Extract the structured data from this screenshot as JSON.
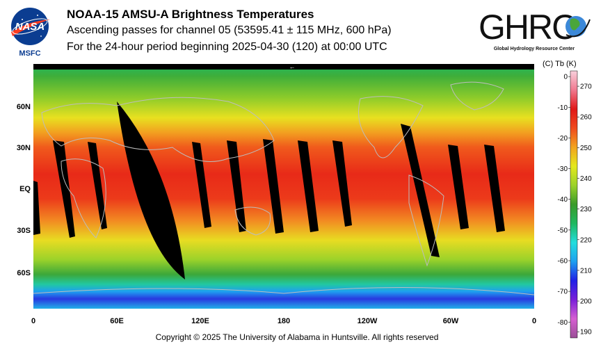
{
  "header": {
    "title": "NOAA-15 AMSU-A Brightness Temperatures",
    "subtitle": "Ascending passes for channel 05 (53595.41 ± 115 MHz, 600 hPa)",
    "period": "For the 24-hour period beginning 2025-04-30 (120) at 00:00 UTC"
  },
  "logos": {
    "nasa": {
      "wordmark": "NASA",
      "center": "MSFC"
    },
    "ghrc": {
      "wordmark": "GHRC",
      "tagline": "Global Hydrology Resource Center"
    }
  },
  "map": {
    "projection": "equirectangular",
    "direction_arrow": "←",
    "lat_labels": [
      {
        "text": "60N",
        "lat": 60
      },
      {
        "text": "30N",
        "lat": 30
      },
      {
        "text": "EQ",
        "lat": 0
      },
      {
        "text": "30S",
        "lat": -30
      },
      {
        "text": "60S",
        "lat": -60
      }
    ],
    "lon_labels": [
      {
        "text": "0",
        "lon": 0
      },
      {
        "text": "60E",
        "lon": 60
      },
      {
        "text": "120E",
        "lon": 120
      },
      {
        "text": "180",
        "lon": 180
      },
      {
        "text": "120W",
        "lon": 240
      },
      {
        "text": "60W",
        "lon": 300
      },
      {
        "text": "0",
        "lon": 360
      }
    ]
  },
  "colorbar": {
    "header": "(C)  Tb  (K)",
    "celsius_ticks": [
      "0",
      "-10",
      "-20",
      "-30",
      "-40",
      "-50",
      "-60",
      "-70",
      "-80"
    ],
    "kelvin_ticks": [
      "270",
      "260",
      "250",
      "240",
      "230",
      "220",
      "210",
      "200",
      "190"
    ],
    "kelvin_range": [
      188,
      275
    ],
    "colors": [
      "#9a4f96",
      "#d65fd2",
      "#7a1fd9",
      "#2020e6",
      "#1ea0f0",
      "#22dddd",
      "#1fb85f",
      "#3a9a2a",
      "#9bd22a",
      "#e4e81c",
      "#f2a41e",
      "#f04a1e",
      "#e01818",
      "#f07a90",
      "#f8d0dc"
    ]
  },
  "footer": {
    "copyright": "Copyright © 2025 The University of Alabama in Huntsville.  All rights reserved"
  }
}
